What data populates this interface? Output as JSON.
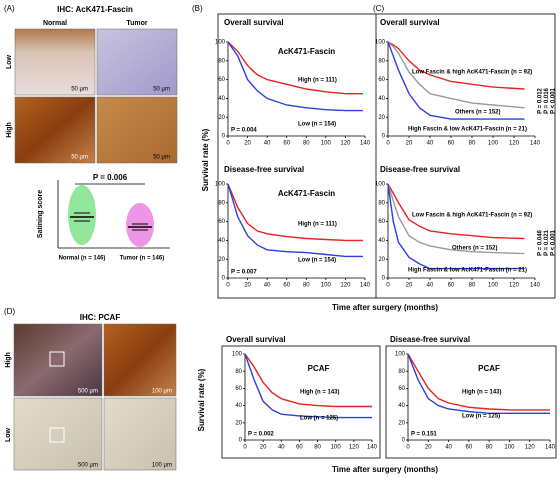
{
  "figure": {
    "panel_labels": [
      "(A)",
      "(B)",
      "(C)",
      "(D)"
    ],
    "a_title": "IHC: AcK471-Fascin",
    "a_columns": [
      "Normal",
      "Tumor"
    ],
    "a_rows": [
      "Low",
      "High"
    ],
    "a_scale": "50 µm",
    "a_plot": {
      "ylabel": "Satining score",
      "categories": [
        "Normal (n = 146)",
        "Tumor (n = 146)"
      ],
      "p": "P = 0.006"
    },
    "d_title": "IHC: PCAF",
    "d_rows": [
      "High",
      "Low"
    ],
    "d_scale": [
      "500 µm",
      "100 µm"
    ],
    "ylabel": "Survival rate (%)",
    "xlabel": "Time after surgery (months)"
  },
  "chart_data": [
    {
      "type": "line",
      "title": "Overall survival",
      "subtitle": "AcK471-Fascin",
      "x": [
        0,
        10,
        20,
        30,
        40,
        60,
        80,
        100,
        120,
        138
      ],
      "series": [
        {
          "name": "High (n = 111)",
          "color": "#e8221f",
          "values": [
            100,
            90,
            75,
            65,
            60,
            55,
            50,
            47,
            45,
            45
          ]
        },
        {
          "name": "Low (n = 154)",
          "color": "#2b3fe0",
          "values": [
            100,
            85,
            60,
            48,
            40,
            33,
            30,
            28,
            27,
            27
          ]
        }
      ],
      "xlim": [
        0,
        140
      ],
      "ylim": [
        0,
        100
      ],
      "xticks": [
        0,
        20,
        40,
        60,
        80,
        100,
        120,
        140
      ],
      "yticks": [
        0,
        20,
        40,
        60,
        80,
        100
      ],
      "annotations": [
        "P = 0.004"
      ]
    },
    {
      "type": "line",
      "title": "Disease-free survival",
      "subtitle": "AcK471-Fascin",
      "x": [
        0,
        10,
        20,
        30,
        40,
        60,
        80,
        100,
        120,
        138
      ],
      "series": [
        {
          "name": "High (n = 111)",
          "color": "#e8221f",
          "values": [
            100,
            75,
            58,
            50,
            47,
            44,
            42,
            41,
            40,
            40
          ]
        },
        {
          "name": "Low (n = 154)",
          "color": "#2b3fe0",
          "values": [
            100,
            65,
            45,
            35,
            30,
            28,
            27,
            25,
            23,
            23
          ]
        }
      ],
      "xlim": [
        0,
        140
      ],
      "ylim": [
        0,
        100
      ],
      "xticks": [
        0,
        20,
        40,
        60,
        80,
        100,
        120,
        140
      ],
      "yticks": [
        0,
        20,
        40,
        60,
        80,
        100
      ],
      "annotations": [
        "P = 0.007"
      ]
    },
    {
      "type": "line",
      "title": "Overall survival",
      "x": [
        0,
        5,
        10,
        20,
        30,
        40,
        60,
        80,
        100,
        130
      ],
      "series": [
        {
          "name": "Low Fascin & high AcK471-Fascin (n = 92)",
          "color": "#e8221f",
          "values": [
            100,
            97,
            93,
            80,
            70,
            65,
            58,
            55,
            52,
            50
          ]
        },
        {
          "name": "Others (n = 152)",
          "color": "#9a9a9a",
          "values": [
            100,
            95,
            88,
            68,
            55,
            45,
            40,
            35,
            33,
            30
          ]
        },
        {
          "name": "High Fascin & low AcK471-Fascin (n = 21)",
          "color": "#2b3fe0",
          "values": [
            100,
            85,
            70,
            45,
            30,
            22,
            18,
            18,
            18,
            18
          ]
        }
      ],
      "xlim": [
        0,
        140
      ],
      "ylim": [
        0,
        100
      ],
      "xticks": [
        0,
        20,
        40,
        60,
        80,
        100,
        120,
        140
      ],
      "yticks": [
        0,
        20,
        40,
        60,
        80,
        100
      ],
      "annotations": [
        "P = 0.012",
        "P = 0.016",
        "P < 0.001"
      ]
    },
    {
      "type": "line",
      "title": "Disease-free survival",
      "x": [
        0,
        5,
        10,
        20,
        30,
        40,
        60,
        80,
        100,
        130
      ],
      "series": [
        {
          "name": "Low Fascin & high AcK471-Fascin (n = 92)",
          "color": "#e8221f",
          "values": [
            100,
            90,
            80,
            62,
            55,
            50,
            47,
            45,
            43,
            42
          ]
        },
        {
          "name": "Others (n = 152)",
          "color": "#9a9a9a",
          "values": [
            100,
            82,
            65,
            45,
            38,
            34,
            30,
            28,
            27,
            26
          ]
        },
        {
          "name": "High Fascin & low AcK471-Fascin (n = 21)",
          "color": "#2b3fe0",
          "values": [
            100,
            60,
            38,
            22,
            15,
            10,
            10,
            10,
            10,
            10
          ]
        }
      ],
      "xlim": [
        0,
        140
      ],
      "ylim": [
        0,
        100
      ],
      "xticks": [
        0,
        20,
        40,
        60,
        80,
        100,
        120,
        140
      ],
      "yticks": [
        0,
        20,
        40,
        60,
        80,
        100
      ],
      "annotations": [
        "P = 0.046",
        "P = 0.021",
        "P < 0.001"
      ]
    },
    {
      "type": "line",
      "title": "Overall survival",
      "subtitle": "PCAF",
      "x": [
        0,
        10,
        20,
        30,
        40,
        60,
        80,
        100,
        120,
        140
      ],
      "series": [
        {
          "name": "High (n = 143)",
          "color": "#e8221f",
          "values": [
            100,
            85,
            67,
            55,
            48,
            42,
            40,
            39,
            39,
            39
          ]
        },
        {
          "name": "Low (n = 125)",
          "color": "#2b3fe0",
          "values": [
            100,
            70,
            45,
            35,
            30,
            28,
            27,
            26,
            26,
            26
          ]
        }
      ],
      "xlim": [
        0,
        140
      ],
      "ylim": [
        0,
        100
      ],
      "xticks": [
        0,
        20,
        40,
        60,
        80,
        100,
        120,
        140
      ],
      "yticks": [
        0,
        20,
        40,
        60,
        80,
        100
      ],
      "annotations": [
        "P = 0.002"
      ]
    },
    {
      "type": "line",
      "title": "Disease-free survival",
      "subtitle": "PCAF",
      "x": [
        0,
        10,
        20,
        30,
        40,
        60,
        80,
        100,
        120,
        140
      ],
      "series": [
        {
          "name": "High (n = 143)",
          "color": "#e8221f",
          "values": [
            100,
            80,
            60,
            48,
            43,
            38,
            36,
            35,
            35,
            35
          ]
        },
        {
          "name": "Low (n = 125)",
          "color": "#2b3fe0",
          "values": [
            100,
            70,
            48,
            40,
            36,
            33,
            31,
            31,
            31,
            31
          ]
        }
      ],
      "xlim": [
        0,
        140
      ],
      "ylim": [
        0,
        100
      ],
      "xticks": [
        0,
        20,
        40,
        60,
        80,
        100,
        120,
        140
      ],
      "yticks": [
        0,
        20,
        40,
        60,
        80,
        100
      ],
      "annotations": [
        "P = 0.151"
      ]
    }
  ]
}
